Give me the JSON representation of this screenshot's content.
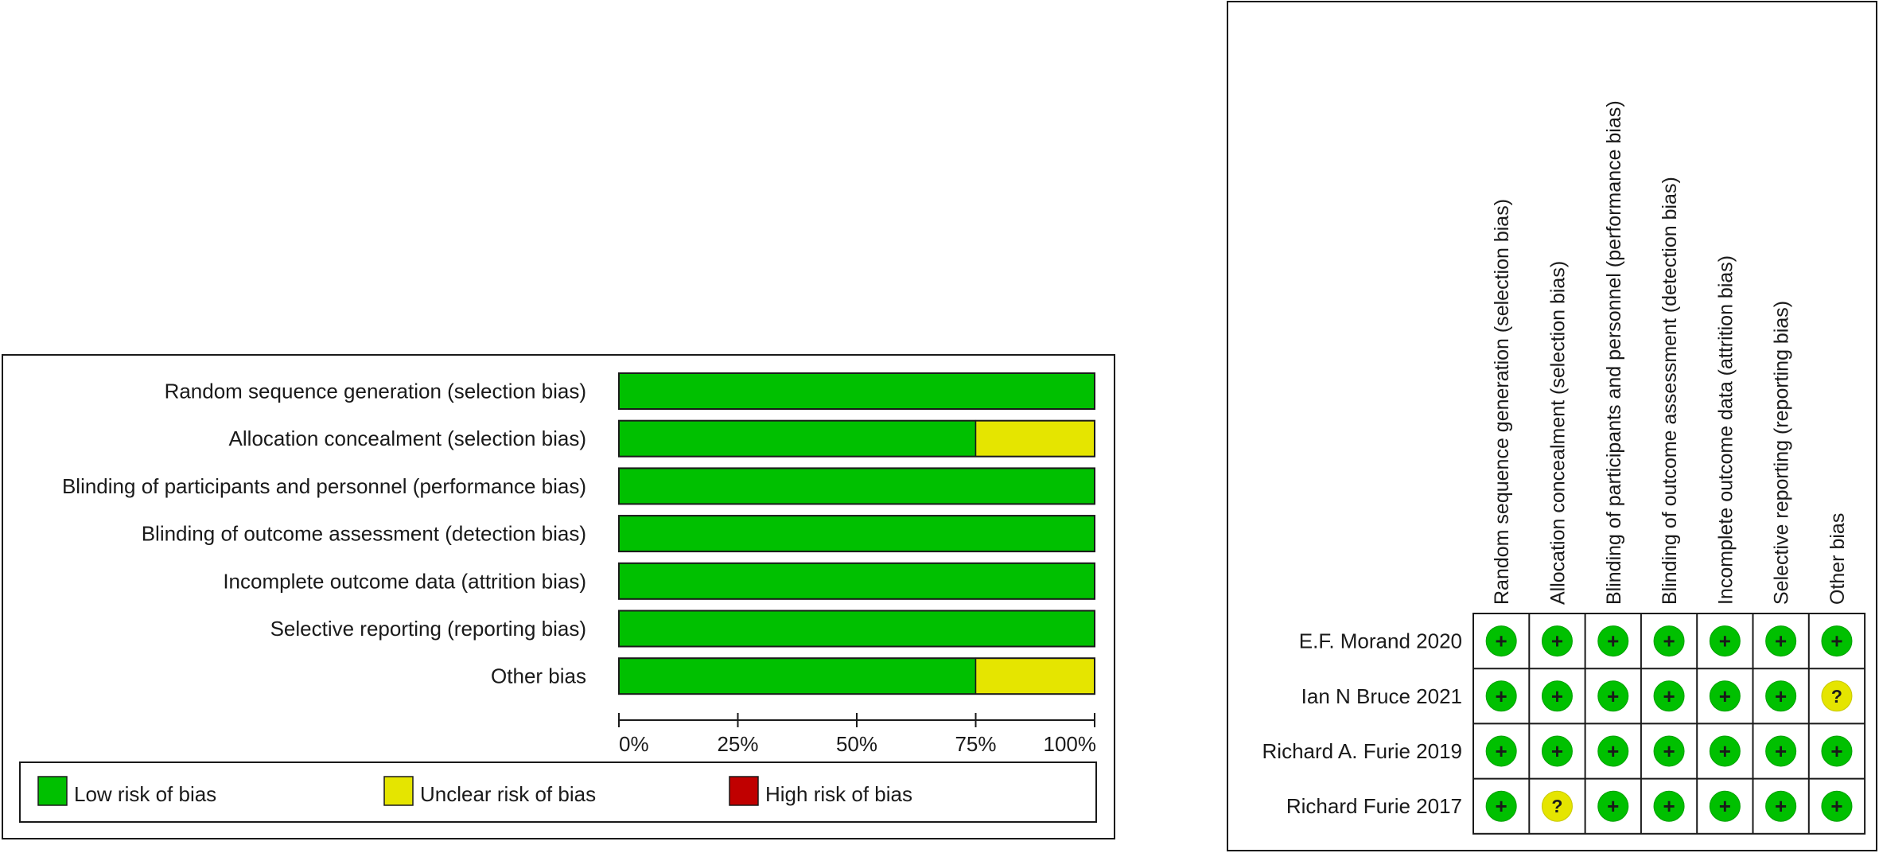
{
  "colors": {
    "low": "#00c000",
    "unclear": "#e5e500",
    "high": "#c00000",
    "frame": "#1a1a1a"
  },
  "chart_data": [
    {
      "type": "bar",
      "orientation": "horizontal",
      "stacked": true,
      "categories": [
        "Random sequence generation (selection bias)",
        "Allocation concealment (selection bias)",
        "Blinding of participants and personnel (performance bias)",
        "Blinding of outcome assessment (detection bias)",
        "Incomplete outcome data (attrition bias)",
        "Selective reporting (reporting bias)",
        "Other bias"
      ],
      "series": [
        {
          "name": "Low risk of bias",
          "color_key": "low",
          "values": [
            100,
            75,
            100,
            100,
            100,
            100,
            75
          ]
        },
        {
          "name": "Unclear risk of bias",
          "color_key": "unclear",
          "values": [
            0,
            25,
            0,
            0,
            0,
            0,
            25
          ]
        },
        {
          "name": "High risk of bias",
          "color_key": "high",
          "values": [
            0,
            0,
            0,
            0,
            0,
            0,
            0
          ]
        }
      ],
      "xlim": [
        0,
        100
      ],
      "xticks": [
        "0%",
        "25%",
        "50%",
        "75%",
        "100%"
      ],
      "legend": [
        "Low risk of bias",
        "Unclear risk of bias",
        "High risk of bias"
      ],
      "legend_position": "bottom"
    },
    {
      "type": "table",
      "columns": [
        "Random sequence generation (selection bias)",
        "Allocation concealment (selection bias)",
        "Blinding of participants and personnel (performance bias)",
        "Blinding of outcome assessment (detection bias)",
        "Incomplete outcome data (attrition bias)",
        "Selective reporting (reporting bias)",
        "Other bias"
      ],
      "rows": [
        {
          "study": "E.F. Morand 2020",
          "judgements": [
            "+",
            "+",
            "+",
            "+",
            "+",
            "+",
            "+"
          ]
        },
        {
          "study": "Ian N Bruce 2021",
          "judgements": [
            "+",
            "+",
            "+",
            "+",
            "+",
            "+",
            "?"
          ]
        },
        {
          "study": "Richard A. Furie 2019",
          "judgements": [
            "+",
            "+",
            "+",
            "+",
            "+",
            "+",
            "+"
          ]
        },
        {
          "study": "Richard Furie 2017",
          "judgements": [
            "+",
            "?",
            "+",
            "+",
            "+",
            "+",
            "+"
          ]
        }
      ]
    }
  ]
}
